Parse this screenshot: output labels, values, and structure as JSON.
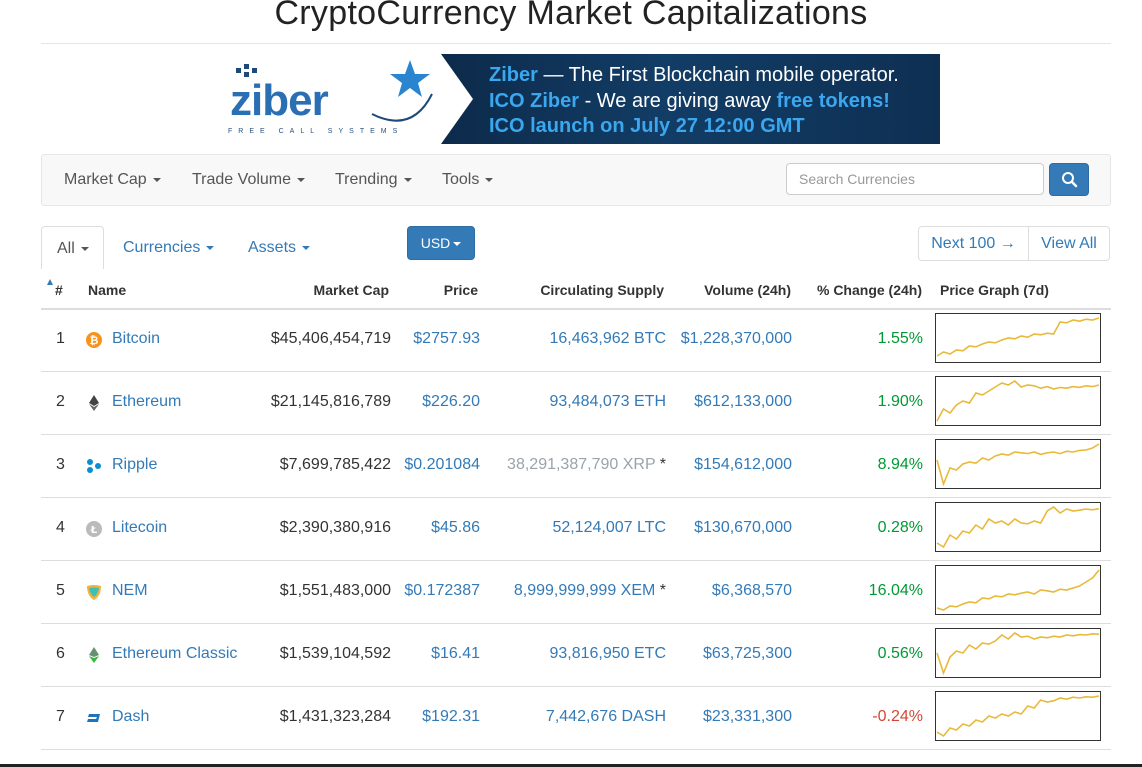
{
  "page": {
    "title": "CryptoCurrency Market Capitalizations"
  },
  "banner": {
    "logo_text": "ziber",
    "logo_sub": "FREE CALL SYSTEMS",
    "line1_highlight": "Ziber",
    "line1_rest": " — The First Blockchain mobile operator.",
    "line2_highlight": "ICO Ziber",
    "line2_mid": " - We are giving away ",
    "line2_tail": "free tokens!",
    "line3": "ICO launch on July 27 12:00 GMT"
  },
  "navbar": {
    "items": [
      "Market Cap",
      "Trade Volume",
      "Trending",
      "Tools"
    ],
    "search_placeholder": "Search Currencies"
  },
  "filters": {
    "all": "All",
    "currencies": "Currencies",
    "assets": "Assets",
    "currency": "USD",
    "next": "Next 100 →",
    "view_all": "View All"
  },
  "table": {
    "headers": {
      "num": "#",
      "name": "Name",
      "mcap": "Market Cap",
      "price": "Price",
      "supply": "Circulating Supply",
      "volume": "Volume (24h)",
      "change": "% Change (24h)",
      "graph": "Price Graph (7d)"
    },
    "rows": [
      {
        "num": "1",
        "name": "Bitcoin",
        "icon": "bitcoin-icon",
        "mcap": "$45,406,454,719",
        "price": "$2757.93",
        "supply": "16,463,962 BTC",
        "supply_star": "",
        "volume": "$1,228,370,000",
        "change": "1.55%",
        "trend": "pos",
        "spark": [
          0.05,
          0.15,
          0.1,
          0.2,
          0.18,
          0.3,
          0.28,
          0.35,
          0.4,
          0.38,
          0.45,
          0.5,
          0.48,
          0.55,
          0.52,
          0.6,
          0.58,
          0.62,
          0.6,
          0.9,
          0.88,
          0.95,
          0.92,
          0.97,
          0.95,
          1.0
        ]
      },
      {
        "num": "2",
        "name": "Ethereum",
        "icon": "ethereum-icon",
        "mcap": "$21,145,816,789",
        "price": "$226.20",
        "supply": "93,484,073 ETH",
        "supply_star": "",
        "volume": "$612,133,000",
        "change": "1.90%",
        "trend": "pos",
        "spark": [
          0.0,
          0.3,
          0.2,
          0.4,
          0.5,
          0.45,
          0.7,
          0.65,
          0.75,
          0.85,
          0.95,
          0.9,
          1.0,
          0.85,
          0.9,
          0.88,
          0.82,
          0.86,
          0.8,
          0.84,
          0.82,
          0.86,
          0.84,
          0.88,
          0.86,
          0.9
        ]
      },
      {
        "num": "3",
        "name": "Ripple",
        "icon": "ripple-icon",
        "mcap": "$7,699,785,422",
        "price": "$0.201084",
        "supply": "38,291,387,790 XRP",
        "supply_star": " *",
        "volume": "$154,612,000",
        "change": "8.94%",
        "trend": "pos",
        "supply_dim": true,
        "spark": [
          0.6,
          0.0,
          0.4,
          0.35,
          0.5,
          0.55,
          0.52,
          0.65,
          0.6,
          0.7,
          0.75,
          0.72,
          0.8,
          0.78,
          0.76,
          0.8,
          0.74,
          0.78,
          0.8,
          0.76,
          0.82,
          0.8,
          0.84,
          0.85,
          0.9,
          1.0
        ]
      },
      {
        "num": "4",
        "name": "Litecoin",
        "icon": "litecoin-icon",
        "mcap": "$2,390,380,916",
        "price": "$45.86",
        "supply": "52,124,007 LTC",
        "supply_star": "",
        "volume": "$130,670,000",
        "change": "0.28%",
        "trend": "pos",
        "spark": [
          0.1,
          0.0,
          0.3,
          0.2,
          0.4,
          0.35,
          0.55,
          0.45,
          0.7,
          0.6,
          0.65,
          0.55,
          0.7,
          0.6,
          0.58,
          0.65,
          0.6,
          0.9,
          1.0,
          0.85,
          0.95,
          0.9,
          0.92,
          0.95,
          0.93,
          0.96
        ]
      },
      {
        "num": "5",
        "name": "NEM",
        "icon": "nem-icon",
        "mcap": "$1,551,483,000",
        "price": "$0.172387",
        "supply": "8,999,999,999 XEM",
        "supply_star": " *",
        "volume": "$6,368,570",
        "change": "16.04%",
        "trend": "pos",
        "spark": [
          0.05,
          0.0,
          0.1,
          0.08,
          0.15,
          0.2,
          0.18,
          0.3,
          0.28,
          0.35,
          0.33,
          0.4,
          0.38,
          0.42,
          0.45,
          0.4,
          0.5,
          0.48,
          0.45,
          0.52,
          0.5,
          0.55,
          0.6,
          0.7,
          0.8,
          1.0
        ]
      },
      {
        "num": "6",
        "name": "Ethereum Classic",
        "icon": "ethereum-classic-icon",
        "mcap": "$1,539,104,592",
        "price": "$16.41",
        "supply": "93,816,950 ETC",
        "supply_star": "",
        "volume": "$63,725,300",
        "change": "0.56%",
        "trend": "pos",
        "spark": [
          0.5,
          0.0,
          0.4,
          0.55,
          0.5,
          0.7,
          0.6,
          0.75,
          0.72,
          0.8,
          0.95,
          0.85,
          1.0,
          0.9,
          0.92,
          0.85,
          0.9,
          0.88,
          0.92,
          0.9,
          0.95,
          0.93,
          0.96,
          0.95,
          0.98,
          0.97
        ]
      },
      {
        "num": "7",
        "name": "Dash",
        "icon": "dash-icon",
        "mcap": "$1,431,323,284",
        "price": "$192.31",
        "supply": "7,442,676 DASH",
        "supply_star": "",
        "volume": "$23,331,300",
        "change": "-0.24%",
        "trend": "neg",
        "spark": [
          0.1,
          0.0,
          0.2,
          0.15,
          0.3,
          0.25,
          0.4,
          0.35,
          0.5,
          0.45,
          0.55,
          0.5,
          0.6,
          0.55,
          0.75,
          0.7,
          0.9,
          0.85,
          0.88,
          0.95,
          0.92,
          0.97,
          0.95,
          0.98,
          0.97,
          1.0
        ]
      }
    ]
  },
  "colors": {
    "accent": "#337ab7",
    "positive": "#009933",
    "negative": "#d14836",
    "spark": "#e8b93a"
  }
}
